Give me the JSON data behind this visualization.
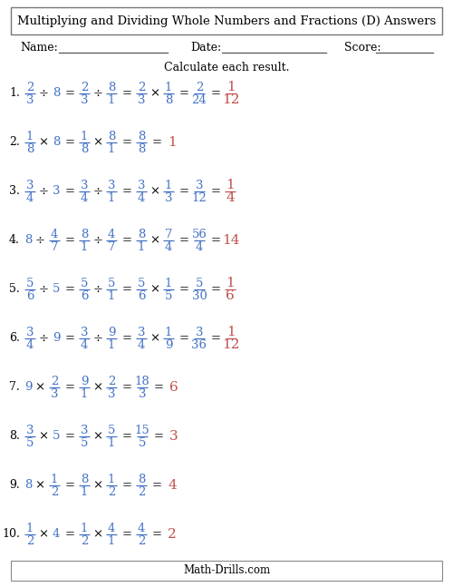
{
  "title": "Multiplying and Dividing Whole Numbers and Fractions (D) Answers",
  "subtitle": "Calculate each result.",
  "blue_color": "#4472C4",
  "red_color": "#C0504D",
  "black_color": "#000000",
  "bg_color": "#FFFFFF",
  "footer": "Math-Drills.com",
  "problems": [
    {
      "num": "1.",
      "q_whole": null,
      "q_num": "2",
      "q_den": "3",
      "op": "÷",
      "q2_whole": "8",
      "q2_num": null,
      "q2_den": null,
      "step1_n1": "2",
      "step1_d1": "3",
      "step1_op": "÷",
      "step1_n2": "8",
      "step1_d2": "1",
      "step2_n1": "2",
      "step2_d1": "3",
      "step2_op": "×",
      "step2_n2": "1",
      "step2_d2": "8",
      "step3_n1": "2",
      "step3_d1": "24",
      "step3_op": null,
      "final_whole": null,
      "final_num": "1",
      "final_den": "12"
    },
    {
      "num": "2.",
      "q_whole": null,
      "q_num": "1",
      "q_den": "8",
      "op": "×",
      "q2_whole": "8",
      "q2_num": null,
      "q2_den": null,
      "step1_n1": "1",
      "step1_d1": "8",
      "step1_op": "×",
      "step1_n2": "8",
      "step1_d2": "1",
      "step2_n1": "8",
      "step2_d1": "8",
      "step2_op": null,
      "step3_n1": null,
      "step3_d1": null,
      "step3_op": null,
      "final_whole": "1",
      "final_num": null,
      "final_den": null
    },
    {
      "num": "3.",
      "q_whole": null,
      "q_num": "3",
      "q_den": "4",
      "op": "÷",
      "q2_whole": "3",
      "q2_num": null,
      "q2_den": null,
      "step1_n1": "3",
      "step1_d1": "4",
      "step1_op": "÷",
      "step1_n2": "3",
      "step1_d2": "1",
      "step2_n1": "3",
      "step2_d1": "4",
      "step2_op": "×",
      "step2_n2": "1",
      "step2_d2": "3",
      "step3_n1": "3",
      "step3_d1": "12",
      "step3_op": null,
      "final_whole": null,
      "final_num": "1",
      "final_den": "4"
    },
    {
      "num": "4.",
      "q_whole": "8",
      "q_num": null,
      "q_den": null,
      "op": "÷",
      "q2_whole": null,
      "q2_num": "4",
      "q2_den": "7",
      "step1_n1": "8",
      "step1_d1": "1",
      "step1_op": "÷",
      "step1_n2": "4",
      "step1_d2": "7",
      "step2_n1": "8",
      "step2_d1": "1",
      "step2_op": "×",
      "step2_n2": "7",
      "step2_d2": "4",
      "step3_n1": "56",
      "step3_d1": "4",
      "step3_op": null,
      "final_whole": "14",
      "final_num": null,
      "final_den": null
    },
    {
      "num": "5.",
      "q_whole": null,
      "q_num": "5",
      "q_den": "6",
      "op": "÷",
      "q2_whole": "5",
      "q2_num": null,
      "q2_den": null,
      "step1_n1": "5",
      "step1_d1": "6",
      "step1_op": "÷",
      "step1_n2": "5",
      "step1_d2": "1",
      "step2_n1": "5",
      "step2_d1": "6",
      "step2_op": "×",
      "step2_n2": "1",
      "step2_d2": "5",
      "step3_n1": "5",
      "step3_d1": "30",
      "step3_op": null,
      "final_whole": null,
      "final_num": "1",
      "final_den": "6"
    },
    {
      "num": "6.",
      "q_whole": null,
      "q_num": "3",
      "q_den": "4",
      "op": "÷",
      "q2_whole": "9",
      "q2_num": null,
      "q2_den": null,
      "step1_n1": "3",
      "step1_d1": "4",
      "step1_op": "÷",
      "step1_n2": "9",
      "step1_d2": "1",
      "step2_n1": "3",
      "step2_d1": "4",
      "step2_op": "×",
      "step2_n2": "1",
      "step2_d2": "9",
      "step3_n1": "3",
      "step3_d1": "36",
      "step3_op": null,
      "final_whole": null,
      "final_num": "1",
      "final_den": "12"
    },
    {
      "num": "7.",
      "q_whole": "9",
      "q_num": null,
      "q_den": null,
      "op": "×",
      "q2_whole": null,
      "q2_num": "2",
      "q2_den": "3",
      "step1_n1": "9",
      "step1_d1": "1",
      "step1_op": "×",
      "step1_n2": "2",
      "step1_d2": "3",
      "step2_n1": "18",
      "step2_d1": "3",
      "step2_op": null,
      "step3_n1": null,
      "step3_d1": null,
      "step3_op": null,
      "final_whole": "6",
      "final_num": null,
      "final_den": null
    },
    {
      "num": "8.",
      "q_whole": null,
      "q_num": "3",
      "q_den": "5",
      "op": "×",
      "q2_whole": "5",
      "q2_num": null,
      "q2_den": null,
      "step1_n1": "3",
      "step1_d1": "5",
      "step1_op": "×",
      "step1_n2": "5",
      "step1_d2": "1",
      "step2_n1": "15",
      "step2_d1": "5",
      "step2_op": null,
      "step3_n1": null,
      "step3_d1": null,
      "step3_op": null,
      "final_whole": "3",
      "final_num": null,
      "final_den": null
    },
    {
      "num": "9.",
      "q_whole": "8",
      "q_num": null,
      "q_den": null,
      "op": "×",
      "q2_whole": null,
      "q2_num": "1",
      "q2_den": "2",
      "step1_n1": "8",
      "step1_d1": "1",
      "step1_op": "×",
      "step1_n2": "1",
      "step1_d2": "2",
      "step2_n1": "8",
      "step2_d1": "2",
      "step2_op": null,
      "step3_n1": null,
      "step3_d1": null,
      "step3_op": null,
      "final_whole": "4",
      "final_num": null,
      "final_den": null
    },
    {
      "num": "10.",
      "q_whole": null,
      "q_num": "1",
      "q_den": "2",
      "op": "×",
      "q2_whole": "4",
      "q2_num": null,
      "q2_den": null,
      "step1_n1": "1",
      "step1_d1": "2",
      "step1_op": "×",
      "step1_n2": "4",
      "step1_d2": "1",
      "step2_n1": "4",
      "step2_d1": "2",
      "step2_op": null,
      "step3_n1": null,
      "step3_d1": null,
      "step3_op": null,
      "final_whole": "2",
      "final_num": null,
      "final_den": null
    }
  ]
}
